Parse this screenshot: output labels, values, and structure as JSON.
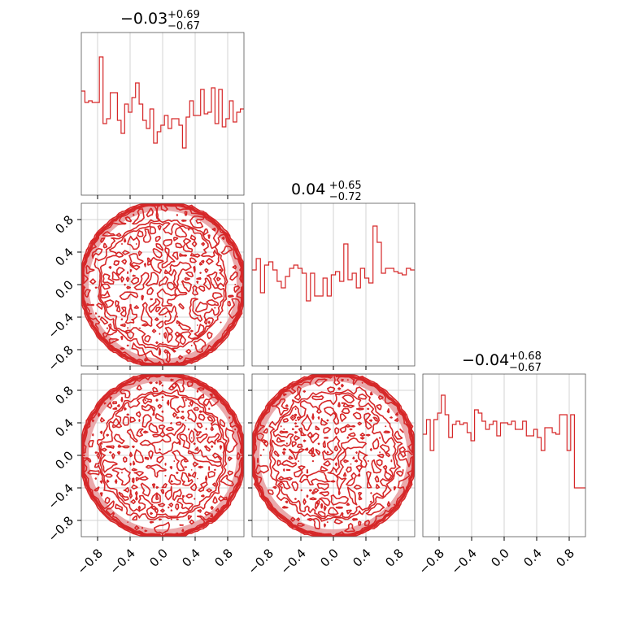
{
  "chart_data": {
    "type": "corner",
    "color": "#d62728",
    "fill_color": "#e8a0a2",
    "grid": true,
    "axis_range": [
      -1,
      1
    ],
    "tick_values": [
      -0.8,
      -0.4,
      0.0,
      0.4,
      0.8
    ],
    "tick_labels": [
      "−0.8",
      "−0.4",
      "0.0",
      "0.4",
      "0.8"
    ],
    "parameters": [
      {
        "title_value": "−0.03",
        "title_upper": "+0.69",
        "title_lower": "−0.67",
        "hist": [
          0.64,
          0.57,
          0.58,
          0.57,
          0.57,
          0.85,
          0.44,
          0.47,
          0.63,
          0.63,
          0.46,
          0.38,
          0.56,
          0.51,
          0.6,
          0.69,
          0.56,
          0.46,
          0.41,
          0.53,
          0.32,
          0.39,
          0.43,
          0.49,
          0.41,
          0.47,
          0.47,
          0.43,
          0.29,
          0.48,
          0.58,
          0.49,
          0.49,
          0.65,
          0.5,
          0.51,
          0.66,
          0.44,
          0.65,
          0.42,
          0.47,
          0.58,
          0.45,
          0.51,
          0.53
        ]
      },
      {
        "title_value": "0.04",
        "title_upper": "+0.65",
        "title_lower": "−0.72",
        "hist": [
          0.59,
          0.66,
          0.45,
          0.62,
          0.64,
          0.59,
          0.52,
          0.48,
          0.55,
          0.6,
          0.62,
          0.6,
          0.57,
          0.4,
          0.57,
          0.43,
          0.43,
          0.54,
          0.43,
          0.56,
          0.58,
          0.52,
          0.75,
          0.53,
          0.57,
          0.48,
          0.6,
          0.54,
          0.51,
          0.86,
          0.76,
          0.57,
          0.6,
          0.6,
          0.58,
          0.57,
          0.56,
          0.6,
          0.59
        ]
      },
      {
        "title_value": "−0.04",
        "title_upper": "+0.68",
        "title_lower": "−0.67",
        "hist": [
          0.63,
          0.72,
          0.53,
          0.72,
          0.76,
          0.87,
          0.75,
          0.61,
          0.69,
          0.71,
          0.69,
          0.7,
          0.64,
          0.59,
          0.78,
          0.76,
          0.71,
          0.66,
          0.69,
          0.71,
          0.62,
          0.7,
          0.7,
          0.69,
          0.71,
          0.66,
          0.66,
          0.71,
          0.62,
          0.62,
          0.66,
          0.61,
          0.53,
          0.67,
          0.67,
          0.64,
          0.63,
          0.75,
          0.75,
          0.53,
          0.75,
          0.3,
          0.3,
          0.3
        ]
      }
    ],
    "contour_levels": [
      0.12,
      0.28,
      0.44,
      0.6,
      0.8
    ]
  }
}
